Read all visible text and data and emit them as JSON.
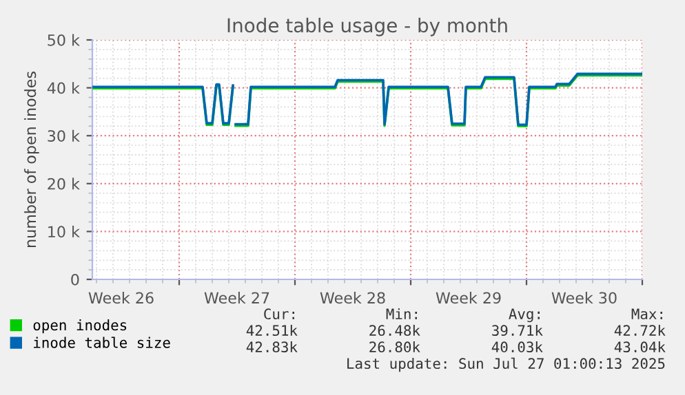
{
  "chart_data": {
    "type": "line",
    "title": "Inode table usage - by month",
    "ylabel": "number of open inodes",
    "x": [
      "2025-06-24T18:00",
      "2025-07-01T10:00",
      "2025-07-01T16:00",
      "2025-07-02T00:00",
      "2025-07-02T06:00",
      "2025-07-02T10:00",
      "2025-07-02T16:00",
      "2025-07-03T00:00",
      "2025-07-03T06:00",
      "2025-07-03T08:00",
      "2025-07-03T10:00",
      "2025-07-04T04:00",
      "2025-07-04T08:00",
      "2025-07-09T10:00",
      "2025-07-09T14:00",
      "2025-07-12T08:00",
      "2025-07-12T10:00",
      "2025-07-12T16:00",
      "2025-07-16T06:00",
      "2025-07-16T12:00",
      "2025-07-17T06:00",
      "2025-07-17T08:00",
      "2025-07-18T06:00",
      "2025-07-18T12:00",
      "2025-07-20T06:00",
      "2025-07-20T12:00",
      "2025-07-21T00:00",
      "2025-07-21T04:00",
      "2025-07-22T18:00",
      "2025-07-22T20:00",
      "2025-07-23T14:00",
      "2025-07-24T02:00",
      "2025-07-28T00:00"
    ],
    "series": [
      {
        "name": "open inodes",
        "color": "#00cc00",
        "values": [
          39900,
          39900,
          32300,
          32300,
          40400,
          40400,
          32300,
          32300,
          40200,
          null,
          32100,
          32100,
          39900,
          39900,
          41300,
          41300,
          32100,
          39900,
          39900,
          32200,
          32200,
          39900,
          39900,
          41900,
          41900,
          32000,
          32000,
          39900,
          39900,
          40500,
          40500,
          42600,
          42600
        ]
      },
      {
        "name": "inode table size",
        "color": "#0066b3",
        "values": [
          40200,
          40200,
          32600,
          32600,
          40700,
          40700,
          32600,
          32600,
          40500,
          null,
          32400,
          32400,
          40200,
          40200,
          41600,
          41600,
          32400,
          40200,
          40200,
          32500,
          32500,
          40200,
          40200,
          42200,
          42200,
          32300,
          32300,
          40200,
          40200,
          40800,
          40800,
          42900,
          42900
        ]
      }
    ],
    "xlim": [
      "2025-06-24T18:00",
      "2025-07-28T00:00"
    ],
    "xticks": [
      {
        "value": "2025-06-26T12:00",
        "label": "Week 26"
      },
      {
        "value": "2025-06-30",
        "label": null
      },
      {
        "value": "2025-07-03T12:00",
        "label": "Week 27"
      },
      {
        "value": "2025-07-07",
        "label": null
      },
      {
        "value": "2025-07-10T12:00",
        "label": "Week 28"
      },
      {
        "value": "2025-07-14",
        "label": null
      },
      {
        "value": "2025-07-17T12:00",
        "label": "Week 29"
      },
      {
        "value": "2025-07-21",
        "label": null
      },
      {
        "value": "2025-07-24T12:00",
        "label": "Week 30"
      },
      {
        "value": "2025-07-28",
        "label": null
      }
    ],
    "ylim": [
      0,
      50000
    ],
    "yticks": [
      {
        "value": 0,
        "label": "0"
      },
      {
        "value": 10000,
        "label": "10 k"
      },
      {
        "value": 20000,
        "label": "20 k"
      },
      {
        "value": 30000,
        "label": "30 k"
      },
      {
        "value": 40000,
        "label": "40 k"
      },
      {
        "value": 50000,
        "label": "50 k"
      }
    ],
    "grid": true,
    "legend": "bottom",
    "marker": "none",
    "line_style": "solid",
    "annotations": [
      "Cur:",
      "Min:",
      "Avg:",
      "Max:",
      "42.51k",
      "26.48k",
      "39.71k",
      "42.72k",
      "42.83k",
      "26.80k",
      "40.03k",
      "43.04k",
      "Last update: Sun Jul 27 01:00:13 2025"
    ]
  }
}
